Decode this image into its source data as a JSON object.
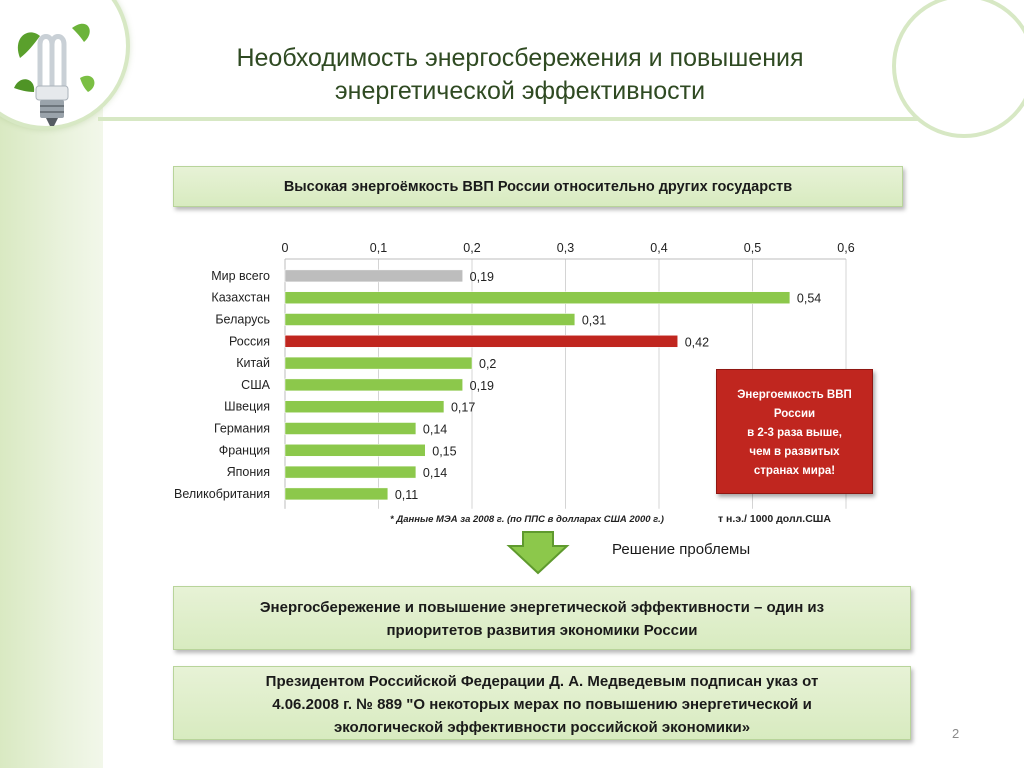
{
  "title": {
    "line1": "Необходимость энергосбережения и повышения",
    "line2": "энергетической эффективности"
  },
  "banner_top": "Высокая энергоёмкость ВВП России относительно других государств",
  "chart_data": {
    "type": "bar",
    "orientation": "horizontal",
    "categories": [
      "Мир всего",
      "Казахстан",
      "Беларусь",
      "Россия",
      "Китай",
      "США",
      "Швеция",
      "Германия",
      "Франция",
      "Япония",
      "Великобритания"
    ],
    "values": [
      0.19,
      0.54,
      0.31,
      0.42,
      0.2,
      0.19,
      0.17,
      0.14,
      0.15,
      0.14,
      0.11
    ],
    "value_labels": [
      "0,19",
      "0,54",
      "0,31",
      "0,42",
      "0,2",
      "0,19",
      "0,17",
      "0,14",
      "0,15",
      "0,14",
      "0,11"
    ],
    "bar_colors": [
      "#bdbdbd",
      "#8cc84b",
      "#8cc84b",
      "#c0261f",
      "#8cc84b",
      "#8cc84b",
      "#8cc84b",
      "#8cc84b",
      "#8cc84b",
      "#8cc84b",
      "#8cc84b"
    ],
    "xlim": [
      0,
      0.6
    ],
    "xticks": [
      0,
      0.1,
      0.2,
      0.3,
      0.4,
      0.5,
      0.6
    ],
    "xtick_labels": [
      "0",
      "0,1",
      "0,2",
      "0,3",
      "0,4",
      "0,5",
      "0,6"
    ],
    "axis_position": "top",
    "grid": true,
    "note": "* Данные МЭА за 2008 г. (по ППС в долларах США 2000 г.)",
    "unit": "т н.э./ 1000 долл.США"
  },
  "callout": {
    "line1": "Энергоемкость ВВП",
    "line2": "России",
    "line3": "в 2-3 раза выше,",
    "line4": "чем в развитых",
    "line5": "странах мира!"
  },
  "solution_label": "Решение проблемы",
  "banner_mid": {
    "line1": "Энергосбережение и повышение энергетической эффективности  –  один из",
    "line2": "приоритетов развития экономики России"
  },
  "banner_bottom": {
    "line1": "Президентом Российской Федерации Д. А. Медведевым подписан указ от",
    "line2": "4.06.2008 г.  № 889 \"О некоторых мерах по повышению энергетической и",
    "line3": "экологической эффективности российской экономики»"
  },
  "page_number": "2",
  "colors": {
    "accent_green": "#8cc84b",
    "highlight_red": "#c0261f",
    "banner_bg": "#dcedc6",
    "title_text": "#2f4a22"
  },
  "icons": {
    "logo": "energy-saving-bulb-icon",
    "arrow": "down-arrow-icon"
  }
}
